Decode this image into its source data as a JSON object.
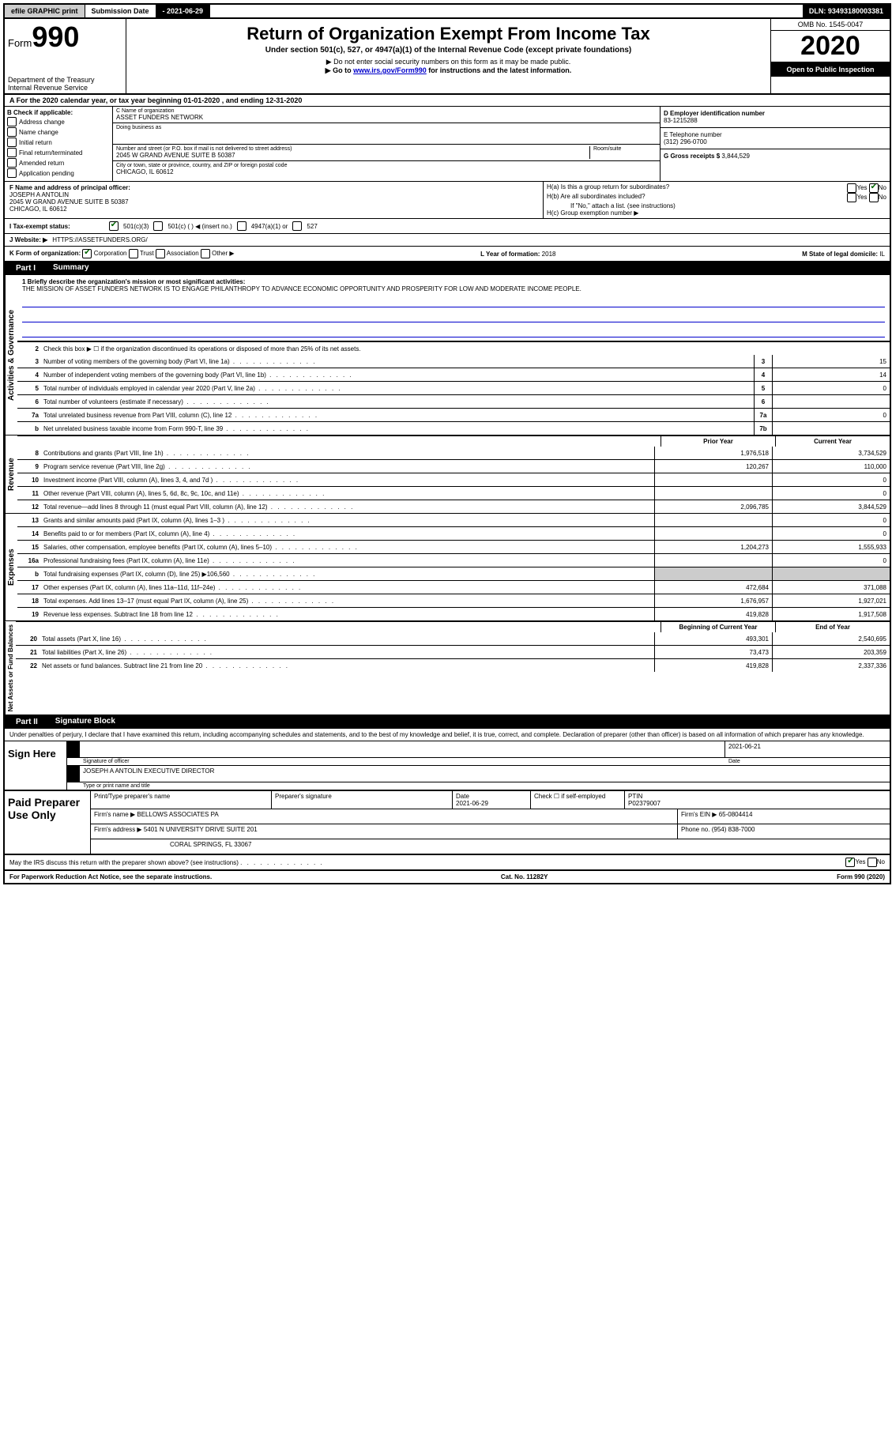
{
  "topbar": {
    "efile": "efile GRAPHIC print",
    "submission_label": "Submission Date",
    "submission_date": "- 2021-06-29",
    "dln_label": "DLN:",
    "dln": "93493180003381"
  },
  "header": {
    "form_label": "Form",
    "form_number": "990",
    "dept": "Department of the Treasury",
    "irs": "Internal Revenue Service",
    "title": "Return of Organization Exempt From Income Tax",
    "subtitle": "Under section 501(c), 527, or 4947(a)(1) of the Internal Revenue Code (except private foundations)",
    "note1": "▶ Do not enter social security numbers on this form as it may be made public.",
    "note2_pre": "▶ Go to ",
    "note2_link": "www.irs.gov/Form990",
    "note2_post": " for instructions and the latest information.",
    "omb": "OMB No. 1545-0047",
    "year": "2020",
    "open": "Open to Public Inspection"
  },
  "row_a": "For the 2020 calendar year, or tax year beginning 01-01-2020   , and ending 12-31-2020",
  "box_b": {
    "title": "B Check if applicable:",
    "items": [
      "Address change",
      "Name change",
      "Initial return",
      "Final return/terminated",
      "Amended return",
      "Application pending"
    ]
  },
  "box_c": {
    "name_label": "C Name of organization",
    "name": "ASSET FUNDERS NETWORK",
    "dba_label": "Doing business as",
    "dba": "",
    "street_label": "Number and street (or P.O. box if mail is not delivered to street address)",
    "room_label": "Room/suite",
    "street": "2045 W GRAND AVENUE SUITE B 50387",
    "city_label": "City or town, state or province, country, and ZIP or foreign postal code",
    "city": "CHICAGO, IL  60612"
  },
  "box_d": {
    "label": "D Employer identification number",
    "value": "83-1215288"
  },
  "box_e": {
    "label": "E Telephone number",
    "value": "(312) 296-0700"
  },
  "box_g": {
    "label": "G Gross receipts $",
    "value": "3,844,529"
  },
  "box_f": {
    "label": "F  Name and address of principal officer:",
    "name": "JOSEPH A ANTOLIN",
    "addr1": "2045 W GRAND AVENUE SUITE B 50387",
    "addr2": "CHICAGO, IL  60612"
  },
  "box_h": {
    "a": "H(a)  Is this a group return for subordinates?",
    "b": "H(b)  Are all subordinates included?",
    "b_note": "If \"No,\" attach a list. (see instructions)",
    "c": "H(c)  Group exemption number ▶"
  },
  "box_i": {
    "label": "I  Tax-exempt status:",
    "opts": [
      "501(c)(3)",
      "501(c) (   ) ◀ (insert no.)",
      "4947(a)(1) or",
      "527"
    ]
  },
  "box_j": {
    "label": "J  Website: ▶",
    "value": "HTTPS://ASSETFUNDERS.ORG/"
  },
  "box_k": {
    "label": "K Form of organization:",
    "opts": [
      "Corporation",
      "Trust",
      "Association",
      "Other ▶"
    ]
  },
  "box_l": {
    "label": "L Year of formation:",
    "value": "2018"
  },
  "box_m": {
    "label": "M State of legal domicile:",
    "value": "IL"
  },
  "part1": {
    "label": "Part I",
    "title": "Summary"
  },
  "mission": {
    "q": "1  Briefly describe the organization's mission or most significant activities:",
    "text": "THE MISSION OF ASSET FUNDERS NETWORK IS TO ENGAGE PHILANTHROPY TO ADVANCE ECONOMIC OPPORTUNITY AND PROSPERITY FOR LOW AND MODERATE INCOME PEOPLE."
  },
  "activities": {
    "label": "Activities & Governance",
    "line2": "Check this box ▶ ☐ if the organization discontinued its operations or disposed of more than 25% of its net assets.",
    "rows": [
      {
        "n": "3",
        "d": "Number of voting members of the governing body (Part VI, line 1a)",
        "box": "3",
        "v": "15"
      },
      {
        "n": "4",
        "d": "Number of independent voting members of the governing body (Part VI, line 1b)",
        "box": "4",
        "v": "14"
      },
      {
        "n": "5",
        "d": "Total number of individuals employed in calendar year 2020 (Part V, line 2a)",
        "box": "5",
        "v": "0"
      },
      {
        "n": "6",
        "d": "Total number of volunteers (estimate if necessary)",
        "box": "6",
        "v": ""
      },
      {
        "n": "7a",
        "d": "Total unrelated business revenue from Part VIII, column (C), line 12",
        "box": "7a",
        "v": "0"
      },
      {
        "n": "b",
        "d": "Net unrelated business taxable income from Form 990-T, line 39",
        "box": "7b",
        "v": ""
      }
    ]
  },
  "cols": {
    "prior": "Prior Year",
    "current": "Current Year",
    "beg": "Beginning of Current Year",
    "end": "End of Year"
  },
  "revenue": {
    "label": "Revenue",
    "rows": [
      {
        "n": "8",
        "d": "Contributions and grants (Part VIII, line 1h)",
        "p": "1,976,518",
        "c": "3,734,529"
      },
      {
        "n": "9",
        "d": "Program service revenue (Part VIII, line 2g)",
        "p": "120,267",
        "c": "110,000"
      },
      {
        "n": "10",
        "d": "Investment income (Part VIII, column (A), lines 3, 4, and 7d )",
        "p": "",
        "c": "0"
      },
      {
        "n": "11",
        "d": "Other revenue (Part VIII, column (A), lines 5, 6d, 8c, 9c, 10c, and 11e)",
        "p": "",
        "c": "0"
      },
      {
        "n": "12",
        "d": "Total revenue—add lines 8 through 11 (must equal Part VIII, column (A), line 12)",
        "p": "2,096,785",
        "c": "3,844,529"
      }
    ]
  },
  "expenses": {
    "label": "Expenses",
    "rows": [
      {
        "n": "13",
        "d": "Grants and similar amounts paid (Part IX, column (A), lines 1–3 )",
        "p": "",
        "c": "0"
      },
      {
        "n": "14",
        "d": "Benefits paid to or for members (Part IX, column (A), line 4)",
        "p": "",
        "c": "0"
      },
      {
        "n": "15",
        "d": "Salaries, other compensation, employee benefits (Part IX, column (A), lines 5–10)",
        "p": "1,204,273",
        "c": "1,555,933"
      },
      {
        "n": "16a",
        "d": "Professional fundraising fees (Part IX, column (A), line 11e)",
        "p": "",
        "c": "0"
      },
      {
        "n": "b",
        "d": "Total fundraising expenses (Part IX, column (D), line 25) ▶106,560",
        "p": "shade",
        "c": "shade"
      },
      {
        "n": "17",
        "d": "Other expenses (Part IX, column (A), lines 11a–11d, 11f–24e)",
        "p": "472,684",
        "c": "371,088"
      },
      {
        "n": "18",
        "d": "Total expenses. Add lines 13–17 (must equal Part IX, column (A), line 25)",
        "p": "1,676,957",
        "c": "1,927,021"
      },
      {
        "n": "19",
        "d": "Revenue less expenses. Subtract line 18 from line 12",
        "p": "419,828",
        "c": "1,917,508"
      }
    ]
  },
  "netassets": {
    "label": "Net Assets or Fund Balances",
    "rows": [
      {
        "n": "20",
        "d": "Total assets (Part X, line 16)",
        "p": "493,301",
        "c": "2,540,695"
      },
      {
        "n": "21",
        "d": "Total liabilities (Part X, line 26)",
        "p": "73,473",
        "c": "203,359"
      },
      {
        "n": "22",
        "d": "Net assets or fund balances. Subtract line 21 from line 20",
        "p": "419,828",
        "c": "2,337,336"
      }
    ]
  },
  "part2": {
    "label": "Part II",
    "title": "Signature Block"
  },
  "penalties": "Under penalties of perjury, I declare that I have examined this return, including accompanying schedules and statements, and to the best of my knowledge and belief, it is true, correct, and complete. Declaration of preparer (other than officer) is based on all information of which preparer has any knowledge.",
  "sign": {
    "here": "Sign Here",
    "sig_label": "Signature of officer",
    "date_label": "Date",
    "date": "2021-06-21",
    "name": "JOSEPH A ANTOLIN  EXECUTIVE DIRECTOR",
    "name_label": "Type or print name and title"
  },
  "preparer": {
    "title": "Paid Preparer Use Only",
    "print_label": "Print/Type preparer's name",
    "sig_label": "Preparer's signature",
    "date_label": "Date",
    "date": "2021-06-29",
    "check_label": "Check ☐ if self-employed",
    "ptin_label": "PTIN",
    "ptin": "P02379007",
    "firm_name_label": "Firm's name   ▶",
    "firm_name": "BELLOWS ASSOCIATES PA",
    "firm_ein_label": "Firm's EIN ▶",
    "firm_ein": "65-0804414",
    "firm_addr_label": "Firm's address ▶",
    "firm_addr1": "5401 N UNIVERSITY DRIVE SUITE 201",
    "firm_addr2": "CORAL SPRINGS, FL  33067",
    "phone_label": "Phone no.",
    "phone": "(954) 838-7000"
  },
  "discuss": "May the IRS discuss this return with the preparer shown above? (see instructions)",
  "footer": {
    "paperwork": "For Paperwork Reduction Act Notice, see the separate instructions.",
    "cat": "Cat. No. 11282Y",
    "form": "Form 990 (2020)"
  }
}
